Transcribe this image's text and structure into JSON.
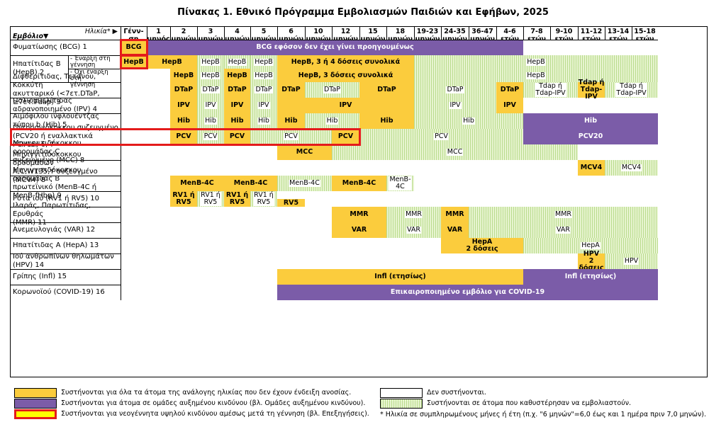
{
  "title": "Πίνακας 1. Εθνικό Πρόγραμμα Εμβολιασμών Παιδιών και Εφήβων, 2025",
  "corner": {
    "age_label": "Ηλικία* ▶",
    "vaccine_label": "Εμβόλιο▼"
  },
  "columns": [
    "Γένν-\nση",
    "1\nμηνός",
    "2\nμηνών",
    "3\nμηνών",
    "4\nμηνών",
    "5\nμηνών",
    "6\nμηνών",
    "10\nμηνών",
    "12\nμηνών",
    "15\nμηνών",
    "18\nμηνών",
    "19-23\nμηνών",
    "24-35\nμηνών",
    "36-47\nμηνών",
    "4-6\nετών",
    "7-8\nετών",
    "9-10\nετών",
    "11-12\nετών",
    "13-14\nετών",
    "15-18\nετών"
  ],
  "rows": [
    {
      "label": "Φυματίωσης (BCG) 1"
    },
    {
      "label": "Ηπατίτιδας Β\n(HepB) 2",
      "sub": [
        "- Έναρξη στη\nγέννηση",
        "- Όχι έναρξη στη\nγέννηση"
      ]
    },
    {
      "label": "Διφθερίτιδας, Τετάνου, Κοκκύτη\nακυτταρικό (<7ετ.DTaP, ≥7ετ.Tdap) 3"
    },
    {
      "label": "Πολιομυελίτιδας\nαδρανοποιημένο (IPV) 4"
    },
    {
      "label": "Αιμόφιλου ινφλουέντζας\nτύπου b (Hib) 5"
    },
    {
      "label": "Πνευμονιόκοκκου συζευγμένο\n(PCV20 ή εναλλακτικά PCV15) 6, 7"
    },
    {
      "label": "Μηνιγγιτιδόκοκκου οροομάδας C\nσυζευγμένο (MCC) 8"
    },
    {
      "label": "Μηνιγγιτιδόκοκκου οροομάδων\nA,C,W135,Y συζευγμένο (MCV4) 8"
    },
    {
      "label": "Μηνιγγιτιδόκοκκου οροομάδας Β\nπρωτεϊνικό (MenB-4C ή MenB-fHbp) 9"
    },
    {
      "label": "Ρότα ιού (RV1 ή RV5) 10"
    },
    {
      "label": "Ιλαράς, Παρωτίτιδας, Ερυθράς\n(MMR) 11"
    },
    {
      "label": "Ανεμευλογιάς (VAR) 12"
    },
    {
      "label": "Ηπατίτιδας Α (HepA) 13"
    },
    {
      "label": "Ιού ανθρωπίνων θηλωμάτων\n(HPV) 14"
    },
    {
      "label": "Γρίπης (Infl) 15"
    },
    {
      "label": "Κορωνοϊού (COVID-19) 16"
    }
  ],
  "cells": [
    {
      "r": 0,
      "c0": 0,
      "c1": 0,
      "s": "y",
      "t": "BCG"
    },
    {
      "r": 0,
      "c0": 1,
      "c1": 14,
      "s": "p",
      "t": "BCG εφόσον δεν έχει γίνει προηγουμένως"
    },
    {
      "r": 0,
      "c0": 15,
      "c1": 19,
      "s": "w",
      "t": ""
    },
    {
      "r": 1,
      "c0": 0,
      "c1": 0,
      "s": "y",
      "t": "HepB"
    },
    {
      "r": 1,
      "c0": 1,
      "c1": 2,
      "s": "y",
      "t": "HepB"
    },
    {
      "r": 1,
      "c0": 3,
      "c1": 3,
      "s": "g",
      "t": "HepB"
    },
    {
      "r": 1,
      "c0": 4,
      "c1": 4,
      "s": "g",
      "t": "HepB"
    },
    {
      "r": 1,
      "c0": 5,
      "c1": 5,
      "s": "g",
      "t": "HepB"
    },
    {
      "r": 1,
      "c0": 6,
      "c1": 10,
      "s": "y",
      "t": "HepB, 3 ή 4 δόσεις συνολικά"
    },
    {
      "r": 1,
      "c0": 11,
      "c1": 19,
      "s": "g",
      "t": "HepB"
    },
    {
      "r": 1.5,
      "c0": 0,
      "c1": 1,
      "s": "w",
      "t": ""
    },
    {
      "r": 1.5,
      "c0": 2,
      "c1": 2,
      "s": "y",
      "t": "HepB"
    },
    {
      "r": 1.5,
      "c0": 3,
      "c1": 3,
      "s": "g",
      "t": "HepB"
    },
    {
      "r": 1.5,
      "c0": 4,
      "c1": 4,
      "s": "y",
      "t": "HepB"
    },
    {
      "r": 1.5,
      "c0": 5,
      "c1": 5,
      "s": "g",
      "t": "HepB"
    },
    {
      "r": 1.5,
      "c0": 6,
      "c1": 10,
      "s": "y",
      "t": "HepB, 3 δόσεις συνολικά"
    },
    {
      "r": 1.5,
      "c0": 11,
      "c1": 19,
      "s": "g",
      "t": "HepB"
    },
    {
      "r": 2,
      "c0": 0,
      "c1": 1,
      "s": "w",
      "t": ""
    },
    {
      "r": 2,
      "c0": 2,
      "c1": 2,
      "s": "y",
      "t": "DTaP"
    },
    {
      "r": 2,
      "c0": 3,
      "c1": 3,
      "s": "g",
      "t": "DTaP"
    },
    {
      "r": 2,
      "c0": 4,
      "c1": 4,
      "s": "y",
      "t": "DTaP"
    },
    {
      "r": 2,
      "c0": 5,
      "c1": 5,
      "s": "g",
      "t": "DTaP"
    },
    {
      "r": 2,
      "c0": 6,
      "c1": 6,
      "s": "y",
      "t": "DTaP"
    },
    {
      "r": 2,
      "c0": 7,
      "c1": 8,
      "s": "g",
      "t": "DTaP"
    },
    {
      "r": 2,
      "c0": 9,
      "c1": 10,
      "s": "y",
      "t": "DTaP"
    },
    {
      "r": 2,
      "c0": 11,
      "c1": 13,
      "s": "g",
      "t": "DTaP"
    },
    {
      "r": 2,
      "c0": 14,
      "c1": 14,
      "s": "y",
      "t": "DTaP"
    },
    {
      "r": 2,
      "c0": 15,
      "c1": 16,
      "s": "g",
      "t": "Tdap ή\nTdap-IPV"
    },
    {
      "r": 2,
      "c0": 17,
      "c1": 17,
      "s": "y",
      "t": "Tdap ή\nTdap-\nIPV"
    },
    {
      "r": 2,
      "c0": 18,
      "c1": 19,
      "s": "g",
      "t": "Tdap ή\nTdap-IPV"
    },
    {
      "r": 3,
      "c0": 0,
      "c1": 1,
      "s": "w",
      "t": ""
    },
    {
      "r": 3,
      "c0": 2,
      "c1": 2,
      "s": "y",
      "t": "IPV"
    },
    {
      "r": 3,
      "c0": 3,
      "c1": 3,
      "s": "g",
      "t": "IPV"
    },
    {
      "r": 3,
      "c0": 4,
      "c1": 4,
      "s": "y",
      "t": "IPV"
    },
    {
      "r": 3,
      "c0": 5,
      "c1": 5,
      "s": "g",
      "t": "IPV"
    },
    {
      "r": 3,
      "c0": 6,
      "c1": 10,
      "s": "y",
      "t": "IPV"
    },
    {
      "r": 3,
      "c0": 11,
      "c1": 13,
      "s": "g",
      "t": "IPV"
    },
    {
      "r": 3,
      "c0": 14,
      "c1": 14,
      "s": "y",
      "t": "IPV"
    },
    {
      "r": 4,
      "c0": 0,
      "c1": 1,
      "s": "w",
      "t": ""
    },
    {
      "r": 4,
      "c0": 2,
      "c1": 2,
      "s": "y",
      "t": "Hib"
    },
    {
      "r": 4,
      "c0": 3,
      "c1": 3,
      "s": "g",
      "t": "Hib"
    },
    {
      "r": 4,
      "c0": 4,
      "c1": 4,
      "s": "y",
      "t": "Hib"
    },
    {
      "r": 4,
      "c0": 5,
      "c1": 5,
      "s": "g",
      "t": "Hib"
    },
    {
      "r": 4,
      "c0": 6,
      "c1": 6,
      "s": "y",
      "t": "Hib"
    },
    {
      "r": 4,
      "c0": 7,
      "c1": 8,
      "s": "g",
      "t": "Hib"
    },
    {
      "r": 4,
      "c0": 9,
      "c1": 10,
      "s": "y",
      "t": "Hib"
    },
    {
      "r": 4,
      "c0": 11,
      "c1": 14,
      "s": "g",
      "t": "Hib"
    },
    {
      "r": 4,
      "c0": 15,
      "c1": 19,
      "s": "p",
      "t": "Hib"
    },
    {
      "r": 5,
      "c0": 0,
      "c1": 1,
      "s": "w",
      "t": ""
    },
    {
      "r": 5,
      "c0": 2,
      "c1": 2,
      "s": "y",
      "t": "PCV"
    },
    {
      "r": 5,
      "c0": 3,
      "c1": 3,
      "s": "g",
      "t": "PCV"
    },
    {
      "r": 5,
      "c0": 4,
      "c1": 4,
      "s": "y",
      "t": "PCV"
    },
    {
      "r": 5,
      "c0": 5,
      "c1": 7,
      "s": "g",
      "t": "PCV"
    },
    {
      "r": 5,
      "c0": 8,
      "c1": 8,
      "s": "y",
      "t": "PCV"
    },
    {
      "r": 5,
      "c0": 9,
      "c1": 14,
      "s": "g",
      "t": "PCV"
    },
    {
      "r": 5,
      "c0": 15,
      "c1": 19,
      "s": "p",
      "t": "PCV20"
    },
    {
      "r": 6,
      "c0": 0,
      "c1": 5,
      "s": "w",
      "t": ""
    },
    {
      "r": 6,
      "c0": 6,
      "c1": 7,
      "s": "y",
      "t": "MCC"
    },
    {
      "r": 6,
      "c0": 8,
      "c1": 16,
      "s": "g",
      "t": "MCC"
    },
    {
      "r": 7,
      "c0": 0,
      "c1": 16,
      "s": "w",
      "t": ""
    },
    {
      "r": 7,
      "c0": 17,
      "c1": 17,
      "s": "y",
      "t": "MCV4"
    },
    {
      "r": 7,
      "c0": 18,
      "c1": 19,
      "s": "g",
      "t": "MCV4"
    },
    {
      "r": 8,
      "c0": 0,
      "c1": 1,
      "s": "w",
      "t": ""
    },
    {
      "r": 8,
      "c0": 2,
      "c1": 3,
      "s": "y",
      "t": "MenB-4C"
    },
    {
      "r": 8,
      "c0": 4,
      "c1": 5,
      "s": "y",
      "t": "MenB-4C"
    },
    {
      "r": 8,
      "c0": 6,
      "c1": 7,
      "s": "g",
      "t": "MenB-4C"
    },
    {
      "r": 8,
      "c0": 8,
      "c1": 9,
      "s": "y",
      "t": "MenB-4C"
    },
    {
      "r": 8,
      "c0": 10,
      "c1": 10,
      "s": "g",
      "t": "MenB-\n4C"
    },
    {
      "r": 9,
      "c0": 0,
      "c1": 1,
      "s": "w",
      "t": ""
    },
    {
      "r": 9,
      "c0": 2,
      "c1": 2,
      "s": "y",
      "t": "RV1 ή\nRV5"
    },
    {
      "r": 9,
      "c0": 3,
      "c1": 3,
      "s": "g",
      "t": "RV1 ή\nRV5"
    },
    {
      "r": 9,
      "c0": 4,
      "c1": 4,
      "s": "y",
      "t": "RV1 ή\nRV5"
    },
    {
      "r": 9,
      "c0": 5,
      "c1": 5,
      "s": "g",
      "t": "RV1 ή\nRV5"
    },
    {
      "r": 9,
      "c0": 6,
      "c1": 6,
      "s": "y",
      "t": "RV5",
      "half": true
    },
    {
      "r": 10,
      "c0": 0,
      "c1": 7,
      "s": "w",
      "t": ""
    },
    {
      "r": 10,
      "c0": 8,
      "c1": 9,
      "s": "y",
      "t": "MMR"
    },
    {
      "r": 10,
      "c0": 10,
      "c1": 11,
      "s": "g",
      "t": "MMR"
    },
    {
      "r": 10,
      "c0": 12,
      "c1": 12,
      "s": "y",
      "t": "MMR"
    },
    {
      "r": 10,
      "c0": 13,
      "c1": 19,
      "s": "g",
      "t": "MMR"
    },
    {
      "r": 11,
      "c0": 0,
      "c1": 7,
      "s": "w",
      "t": ""
    },
    {
      "r": 11,
      "c0": 8,
      "c1": 9,
      "s": "y",
      "t": "VAR"
    },
    {
      "r": 11,
      "c0": 10,
      "c1": 11,
      "s": "g",
      "t": "VAR"
    },
    {
      "r": 11,
      "c0": 12,
      "c1": 12,
      "s": "y",
      "t": "VAR"
    },
    {
      "r": 11,
      "c0": 13,
      "c1": 19,
      "s": "g",
      "t": "VAR"
    },
    {
      "r": 12,
      "c0": 0,
      "c1": 11,
      "s": "w",
      "t": ""
    },
    {
      "r": 12,
      "c0": 12,
      "c1": 14,
      "s": "y",
      "t": "HepA\n2 δόσεις"
    },
    {
      "r": 12,
      "c0": 15,
      "c1": 19,
      "s": "g",
      "t": "HepA"
    },
    {
      "r": 13,
      "c0": 0,
      "c1": 16,
      "s": "w",
      "t": ""
    },
    {
      "r": 13,
      "c0": 17,
      "c1": 17,
      "s": "y",
      "t": "HPV\n2 δόσεις"
    },
    {
      "r": 13,
      "c0": 18,
      "c1": 19,
      "s": "g",
      "t": "HPV"
    },
    {
      "r": 14,
      "c0": 0,
      "c1": 5,
      "s": "w",
      "t": ""
    },
    {
      "r": 14,
      "c0": 6,
      "c1": 14,
      "s": "y",
      "t": "Infl (ετησίως)"
    },
    {
      "r": 14,
      "c0": 15,
      "c1": 19,
      "s": "p",
      "t": "Infl (ετησίως)"
    },
    {
      "r": 15,
      "c0": 0,
      "c1": 5,
      "s": "w",
      "t": ""
    },
    {
      "r": 15,
      "c0": 6,
      "c1": 19,
      "s": "p",
      "t": "Επικαιροποιημένο εμβόλιο για COVID-19"
    }
  ],
  "legend": [
    {
      "style": "y",
      "text": "Συστήνονται για όλα τα άτομα της ανάλογης ηλικίας που δεν έχουν ένδειξη ανοσίας."
    },
    {
      "style": "p",
      "text": "Συστήνονται για άτομα σε ομάδες αυξημένου κινδύνου (βλ. Ομάδες αυξημένου κινδύνου)."
    },
    {
      "style": "yr",
      "text": "Συστήνονται για νεογέννητα υψηλού κινδύνου αμέσως μετά τη γέννηση (βλ. Επεξηγήσεις)."
    },
    {
      "style": "w",
      "text": "Δεν συστήνονται."
    },
    {
      "style": "g",
      "text": "Συστήνονται σε άτομα που καθυστέρησαν να εμβολιαστούν."
    }
  ],
  "footnote": "* Ηλικία σε συμπληρωμένους μήνες ή έτη (π.χ. \"6 μηνών\"=6,0 έως και 1 ημέρα πριν 7,0 μηνών)."
}
